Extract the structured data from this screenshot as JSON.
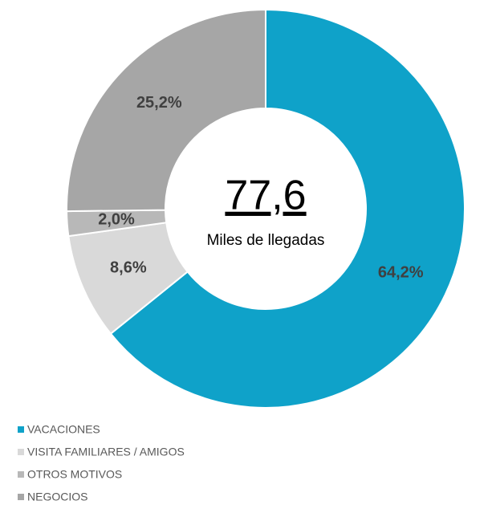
{
  "chart_data": {
    "type": "pie",
    "categories": [
      "VACACIONES",
      "VISITA FAMILIARES / AMIGOS",
      "OTROS MOTIVOS",
      "NEGOCIOS"
    ],
    "values": [
      64.2,
      8.6,
      2.0,
      25.2
    ],
    "value_labels": [
      "64,2%",
      "8,6%",
      "2,0%",
      "25,2%"
    ],
    "colors": [
      "#0fa2c9",
      "#d9d9d9",
      "#b8b8b8",
      "#a6a6a6"
    ],
    "center_value": "77,6",
    "center_label": "Miles de llegadas"
  }
}
